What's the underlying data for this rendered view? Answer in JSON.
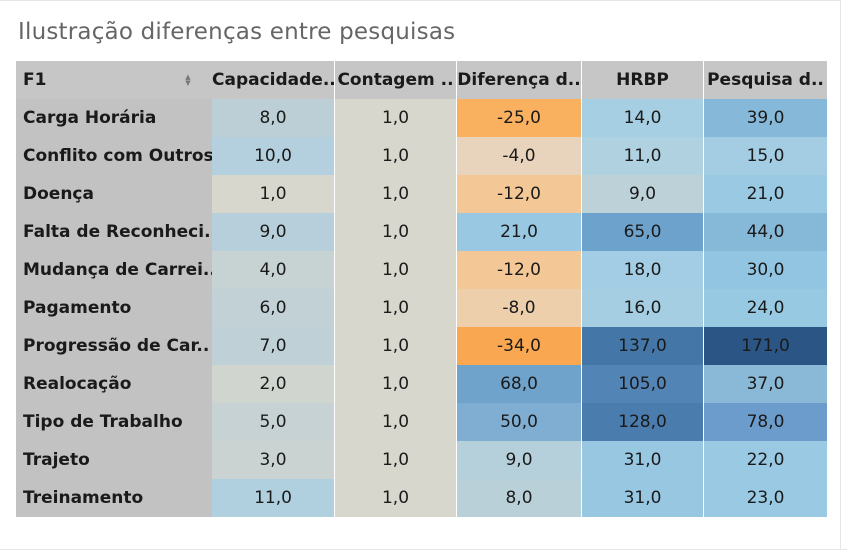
{
  "title": "Ilustração diferenças entre pesquisas",
  "chart_data": {
    "type": "heatmap",
    "row_header": "F1",
    "columns": [
      "Capacidade..",
      "Contagem ..",
      "Diferença d..",
      "HRBP",
      "Pesquisa d.."
    ],
    "rows": [
      {
        "label": "Carga Horária",
        "values": [
          "8,0",
          "1,0",
          "-25,0",
          "14,0",
          "39,0"
        ]
      },
      {
        "label": "Conflito com Outros",
        "values": [
          "10,0",
          "1,0",
          "-4,0",
          "11,0",
          "15,0"
        ]
      },
      {
        "label": "Doença",
        "values": [
          "1,0",
          "1,0",
          "-12,0",
          "9,0",
          "21,0"
        ]
      },
      {
        "label": "Falta de Reconheci..",
        "values": [
          "9,0",
          "1,0",
          "21,0",
          "65,0",
          "44,0"
        ]
      },
      {
        "label": "Mudança de Carrei..",
        "values": [
          "4,0",
          "1,0",
          "-12,0",
          "18,0",
          "30,0"
        ]
      },
      {
        "label": "Pagamento",
        "values": [
          "6,0",
          "1,0",
          "-8,0",
          "16,0",
          "24,0"
        ]
      },
      {
        "label": "Progressão de Car..",
        "values": [
          "7,0",
          "1,0",
          "-34,0",
          "137,0",
          "171,0"
        ]
      },
      {
        "label": "Realocação",
        "values": [
          "2,0",
          "1,0",
          "68,0",
          "105,0",
          "37,0"
        ]
      },
      {
        "label": "Tipo de Trabalho",
        "values": [
          "5,0",
          "1,0",
          "50,0",
          "128,0",
          "78,0"
        ]
      },
      {
        "label": "Trajeto",
        "values": [
          "3,0",
          "1,0",
          "9,0",
          "31,0",
          "22,0"
        ]
      },
      {
        "label": "Treinamento",
        "values": [
          "11,0",
          "1,0",
          "8,0",
          "31,0",
          "23,0"
        ]
      }
    ],
    "cell_colors": [
      [
        "#bccfd6",
        "#d7d7cd",
        "#fab15f",
        "#a7cfe3",
        "#86b9d9"
      ],
      [
        "#b4d0de",
        "#d7d7cd",
        "#e8d4bd",
        "#b0d1df",
        "#a4cde4"
      ],
      [
        "#d7d7cd",
        "#d7d7cd",
        "#f4c896",
        "#bdd1d8",
        "#99c9e3"
      ],
      [
        "#b7cfda",
        "#d7d7cd",
        "#99c8e3",
        "#6da2cd",
        "#86b8d8"
      ],
      [
        "#c7d3d3",
        "#d7d7cd",
        "#f4c896",
        "#a3cde4",
        "#92c5e1"
      ],
      [
        "#c2d1d6",
        "#d7d7cd",
        "#edcfac",
        "#a6cee3",
        "#98c9e3"
      ],
      [
        "#bfd1d7",
        "#d7d7cd",
        "#f9a750",
        "#4477a8",
        "#2a5585"
      ],
      [
        "#d0d5d0",
        "#d7d7cd",
        "#6fa3cc",
        "#5285b6",
        "#8ab9d8"
      ],
      [
        "#c6d2d4",
        "#d7d7cd",
        "#80aed3",
        "#4a7cad",
        "#6c9ccb"
      ],
      [
        "#cad3d2",
        "#d7d7cd",
        "#b6d0db",
        "#98c7e2",
        "#99c9e3"
      ],
      [
        "#b1d0df",
        "#d7d7cd",
        "#b9d0d9",
        "#98c7e2",
        "#99c9e3"
      ]
    ]
  }
}
